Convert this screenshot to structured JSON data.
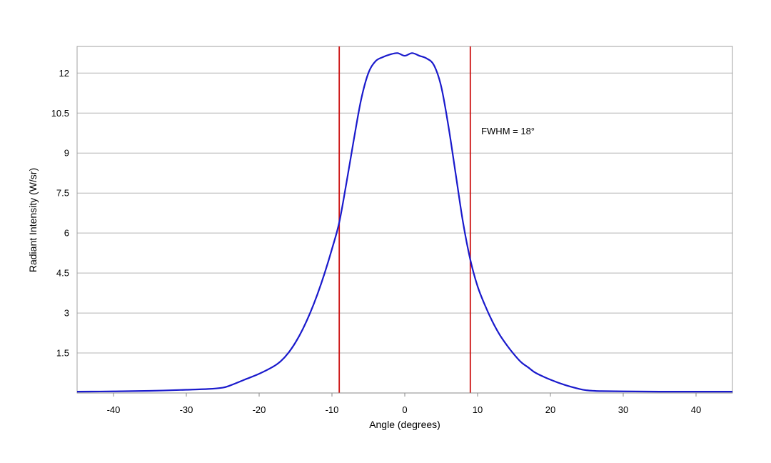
{
  "chart_data": {
    "type": "line",
    "title": "",
    "xlabel": "Angle (degrees)",
    "ylabel": "Radiant Intensity (W/sr)",
    "xlim": [
      -45,
      45
    ],
    "ylim": [
      0,
      13
    ],
    "xticks": [
      -40,
      -30,
      -20,
      -10,
      0,
      10,
      20,
      30,
      40
    ],
    "xtick_labels": [
      "-40",
      "-30",
      "-20",
      "-10",
      "0",
      "10",
      "20",
      "30",
      "40"
    ],
    "yticks": [
      1.5,
      3,
      4.5,
      6,
      7.5,
      9,
      10.5,
      12
    ],
    "ytick_labels": [
      "1.5",
      "3",
      "4.5",
      "6",
      "7.5",
      "9",
      "10.5",
      "12"
    ],
    "grid": "horizontal",
    "series": [
      {
        "color": "#1a1acc",
        "x": [
          -45,
          -40,
          -35,
          -30,
          -27,
          -25,
          -24,
          -22,
          -20,
          -18,
          -17,
          -16,
          -15,
          -14,
          -13,
          -12,
          -11,
          -10,
          -9,
          -8,
          -7,
          -6,
          -5,
          -4,
          -3,
          -2,
          -1,
          0,
          1,
          2,
          3,
          4,
          5,
          6,
          7,
          8,
          9,
          10,
          11,
          12,
          13,
          14,
          15,
          16,
          17,
          18,
          20,
          22,
          24,
          25,
          26,
          27,
          30,
          35,
          40,
          45
        ],
        "y": [
          0.05,
          0.06,
          0.08,
          0.12,
          0.15,
          0.2,
          0.28,
          0.5,
          0.72,
          1.0,
          1.2,
          1.5,
          1.9,
          2.4,
          3.0,
          3.7,
          4.5,
          5.4,
          6.4,
          7.9,
          9.5,
          11.0,
          12.0,
          12.45,
          12.6,
          12.7,
          12.75,
          12.65,
          12.75,
          12.65,
          12.55,
          12.3,
          11.5,
          10.0,
          8.2,
          6.4,
          5.0,
          4.0,
          3.3,
          2.7,
          2.2,
          1.8,
          1.45,
          1.15,
          0.95,
          0.75,
          0.5,
          0.3,
          0.15,
          0.1,
          0.08,
          0.07,
          0.06,
          0.05,
          0.05,
          0.05
        ]
      }
    ],
    "reference_lines": [
      {
        "x": -9,
        "color": "#cc1111"
      },
      {
        "x": 9,
        "color": "#cc1111"
      }
    ],
    "annotations": [
      {
        "text": "FWHM = 18°",
        "x": 10.5,
        "y": 9.7
      }
    ]
  }
}
